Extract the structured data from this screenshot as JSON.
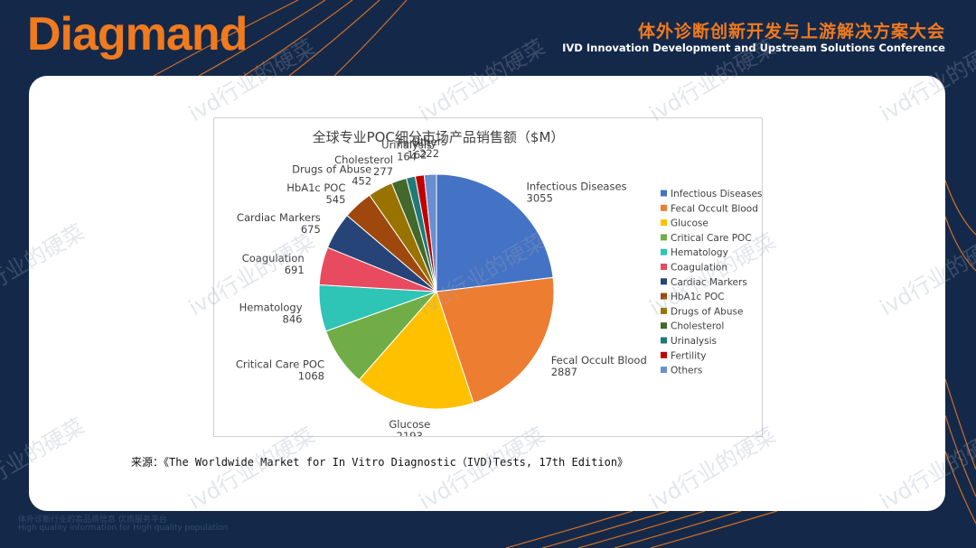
{
  "header": {
    "logo": "Diagmand",
    "conference_cn": "体外诊断创新开发与上游解决方案大会",
    "conference_en": "IVD Innovation Development and Upstream Solutions Conference"
  },
  "source_note": "来源：《The Worldwide Market for In Vitro Diagnostic（IVD)Tests, 17th Edition》",
  "watermark": "ivd行业的硬菜",
  "footer": {
    "cn": "体外诊断行业的高品质信息 优质服务平台",
    "en": "High quality information for High quality population"
  },
  "colors": {
    "background": "#14294a",
    "brand_orange": "#f07a1e",
    "card": "#ffffff"
  },
  "chart_data": {
    "type": "pie",
    "title": "全球专业POC细分市场产品销售额（$M）",
    "legend_position": "right",
    "slices": [
      {
        "label": "Infectious Diseases",
        "value": 3055,
        "color": "#4472c4"
      },
      {
        "label": "Fecal Occult Blood",
        "value": 2887,
        "color": "#ed7d31"
      },
      {
        "label": "Glucose",
        "value": 2193,
        "color": "#ffc000"
      },
      {
        "label": "Critical Care POC",
        "value": 1068,
        "color": "#70ad47"
      },
      {
        "label": "Hematology",
        "value": 846,
        "color": "#2ec4b6"
      },
      {
        "label": "Coagulation",
        "value": 691,
        "color": "#e84a5f"
      },
      {
        "label": "Cardiac Markers",
        "value": 675,
        "color": "#264478"
      },
      {
        "label": "HbA1c POC",
        "value": 545,
        "color": "#9e480e"
      },
      {
        "label": "Drugs of Abuse",
        "value": 452,
        "color": "#997300"
      },
      {
        "label": "Cholesterol",
        "value": 277,
        "color": "#43682b"
      },
      {
        "label": "Urinalysis",
        "value": 164,
        "color": "#1f7a7a"
      },
      {
        "label": "Fertility",
        "value": 162,
        "color": "#c00000"
      },
      {
        "label": "Others",
        "value": 222,
        "color": "#698ed0"
      }
    ]
  }
}
